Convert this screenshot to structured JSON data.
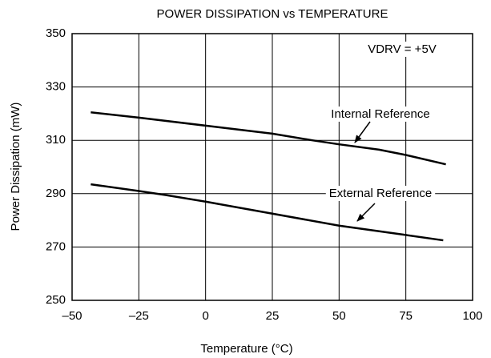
{
  "chart_data": {
    "type": "line",
    "title": "POWER DISSIPATION vs TEMPERATURE",
    "xlabel": "Temperature (°C)",
    "ylabel": "Power Dissipation (mW)",
    "annotations": [
      "VDRV = +5V",
      "Internal Reference",
      "External Reference"
    ],
    "xlim": [
      -50,
      100
    ],
    "xticks": [
      {
        "value": -50,
        "label": "–50"
      },
      {
        "value": -25,
        "label": "–25"
      },
      0,
      25,
      50,
      75,
      100
    ],
    "ylim": [
      250,
      350
    ],
    "yticks": [
      250,
      270,
      290,
      310,
      330,
      350
    ],
    "grid": true,
    "series": [
      {
        "name": "Internal Reference",
        "color": "#000000",
        "x": [
          -43,
          -25,
          0,
          25,
          40,
          50,
          65,
          75,
          90
        ],
        "values": [
          320.5,
          318.5,
          315.5,
          312.5,
          310,
          308.5,
          306.5,
          304.5,
          301
        ]
      },
      {
        "name": "External Reference",
        "color": "#000000",
        "x": [
          -43,
          -25,
          -15,
          0,
          25,
          50,
          75,
          89
        ],
        "values": [
          293.5,
          291,
          289.5,
          287,
          282.5,
          278,
          274.5,
          272.5
        ]
      }
    ]
  }
}
